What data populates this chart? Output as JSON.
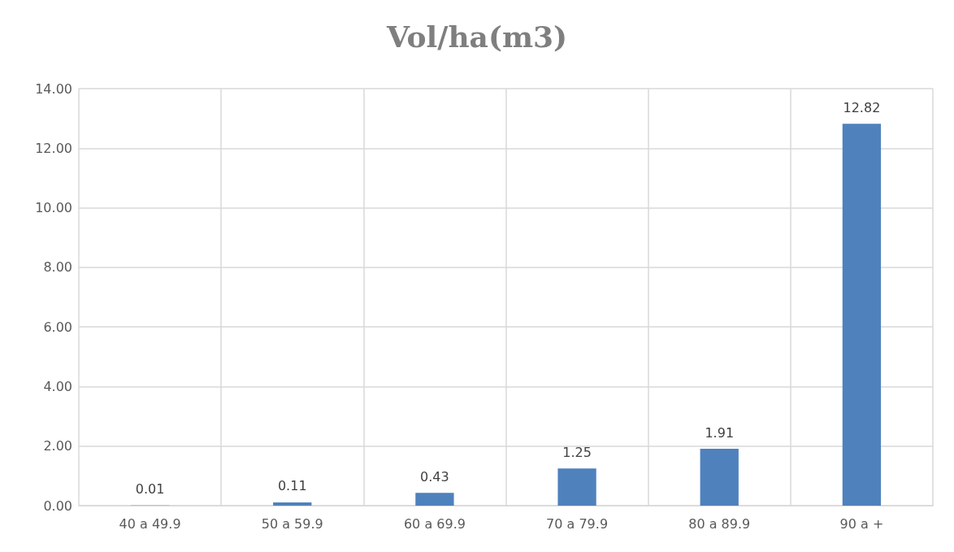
{
  "chart_data": {
    "type": "bar",
    "title": "Vol/ha(m3)",
    "categories": [
      "40 a 49.9",
      "50 a 59.9",
      "60 a 69.9",
      "70 a 79.9",
      "80 a 89.9",
      "90 a +"
    ],
    "values": [
      0.01,
      0.11,
      0.43,
      1.25,
      1.91,
      12.82
    ],
    "color": "#4f81bd",
    "ylim": [
      0,
      14
    ],
    "yticks": [
      {
        "value": 0,
        "label": "0.00"
      },
      {
        "value": 2,
        "label": "2.00"
      },
      {
        "value": 4,
        "label": "4.00"
      },
      {
        "value": 6,
        "label": "6.00"
      },
      {
        "value": 8,
        "label": "8.00"
      },
      {
        "value": 10,
        "label": "10.00"
      },
      {
        "value": 12,
        "label": "12.00"
      },
      {
        "value": 14,
        "label": "14.00"
      }
    ],
    "grid": true,
    "data_labels": true
  }
}
